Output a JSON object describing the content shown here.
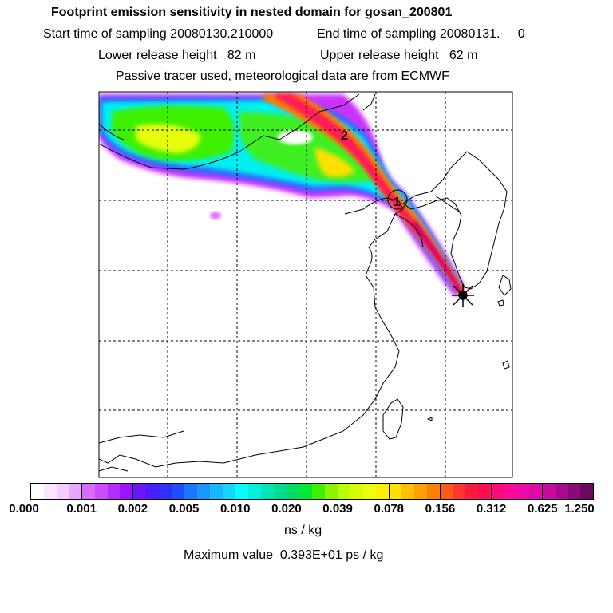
{
  "header": {
    "title": "Footprint emission sensitivity in nested domain for gosan_200801",
    "start_time": "Start time of sampling 20080130.210000",
    "end_time": "End time of sampling 20080131.     0",
    "lower_release": "Lower release height   82 m",
    "upper_release": "Upper release height   62 m",
    "tracer_note": "Passive tracer used, meteorological data are from ECMWF"
  },
  "map": {
    "receptor_marker": "star-cross",
    "point_labels": [
      "1",
      "2"
    ],
    "plume_colors": [
      "#ff00ff",
      "#ff2a6a",
      "#ff7a00",
      "#ffd000",
      "#a0ff00",
      "#00ff80",
      "#00e5ff",
      "#1e90ff"
    ],
    "background": "#ffffff",
    "coastline_color": "#000000",
    "grid_color": "#000000"
  },
  "colorbar": {
    "units": "ns / kg",
    "tick_labels": [
      "0.000",
      "0.001",
      "0.002",
      "0.005",
      "0.010",
      "0.020",
      "0.039",
      "0.078",
      "0.156",
      "0.312",
      "0.625",
      "1.250"
    ],
    "segments": [
      [
        "#ffffff",
        "#fbe6ff",
        "#f4ccff",
        "#e9a8ff"
      ],
      [
        "#d86cff",
        "#c94cff",
        "#b52dff",
        "#9a14ff"
      ],
      [
        "#6b15ff",
        "#4a1cff",
        "#3030ff",
        "#1e4fff"
      ],
      [
        "#1a78ff",
        "#1898ff",
        "#17b8ff",
        "#14d7ff"
      ],
      [
        "#00ffff",
        "#00f2dc",
        "#00e5b8",
        "#00dd90"
      ],
      [
        "#00dd60",
        "#00e838",
        "#3cf000",
        "#8cf400"
      ],
      [
        "#b8ff00",
        "#d8ff00",
        "#eaff10",
        "#fff000"
      ],
      [
        "#ffe000",
        "#ffc000",
        "#ffa000",
        "#ff8000"
      ],
      [
        "#ff5a1a",
        "#ff3530",
        "#ff1a3c",
        "#ff0c52"
      ],
      [
        "#ff0a78",
        "#ff0a96",
        "#f00aa8",
        "#dc0aa8"
      ],
      [
        "#c80a9c",
        "#a80a8c",
        "#8c0a78",
        "#6e0a5e"
      ]
    ]
  },
  "footer": {
    "max_value": "Maximum value  0.393E+01 ps / kg"
  }
}
